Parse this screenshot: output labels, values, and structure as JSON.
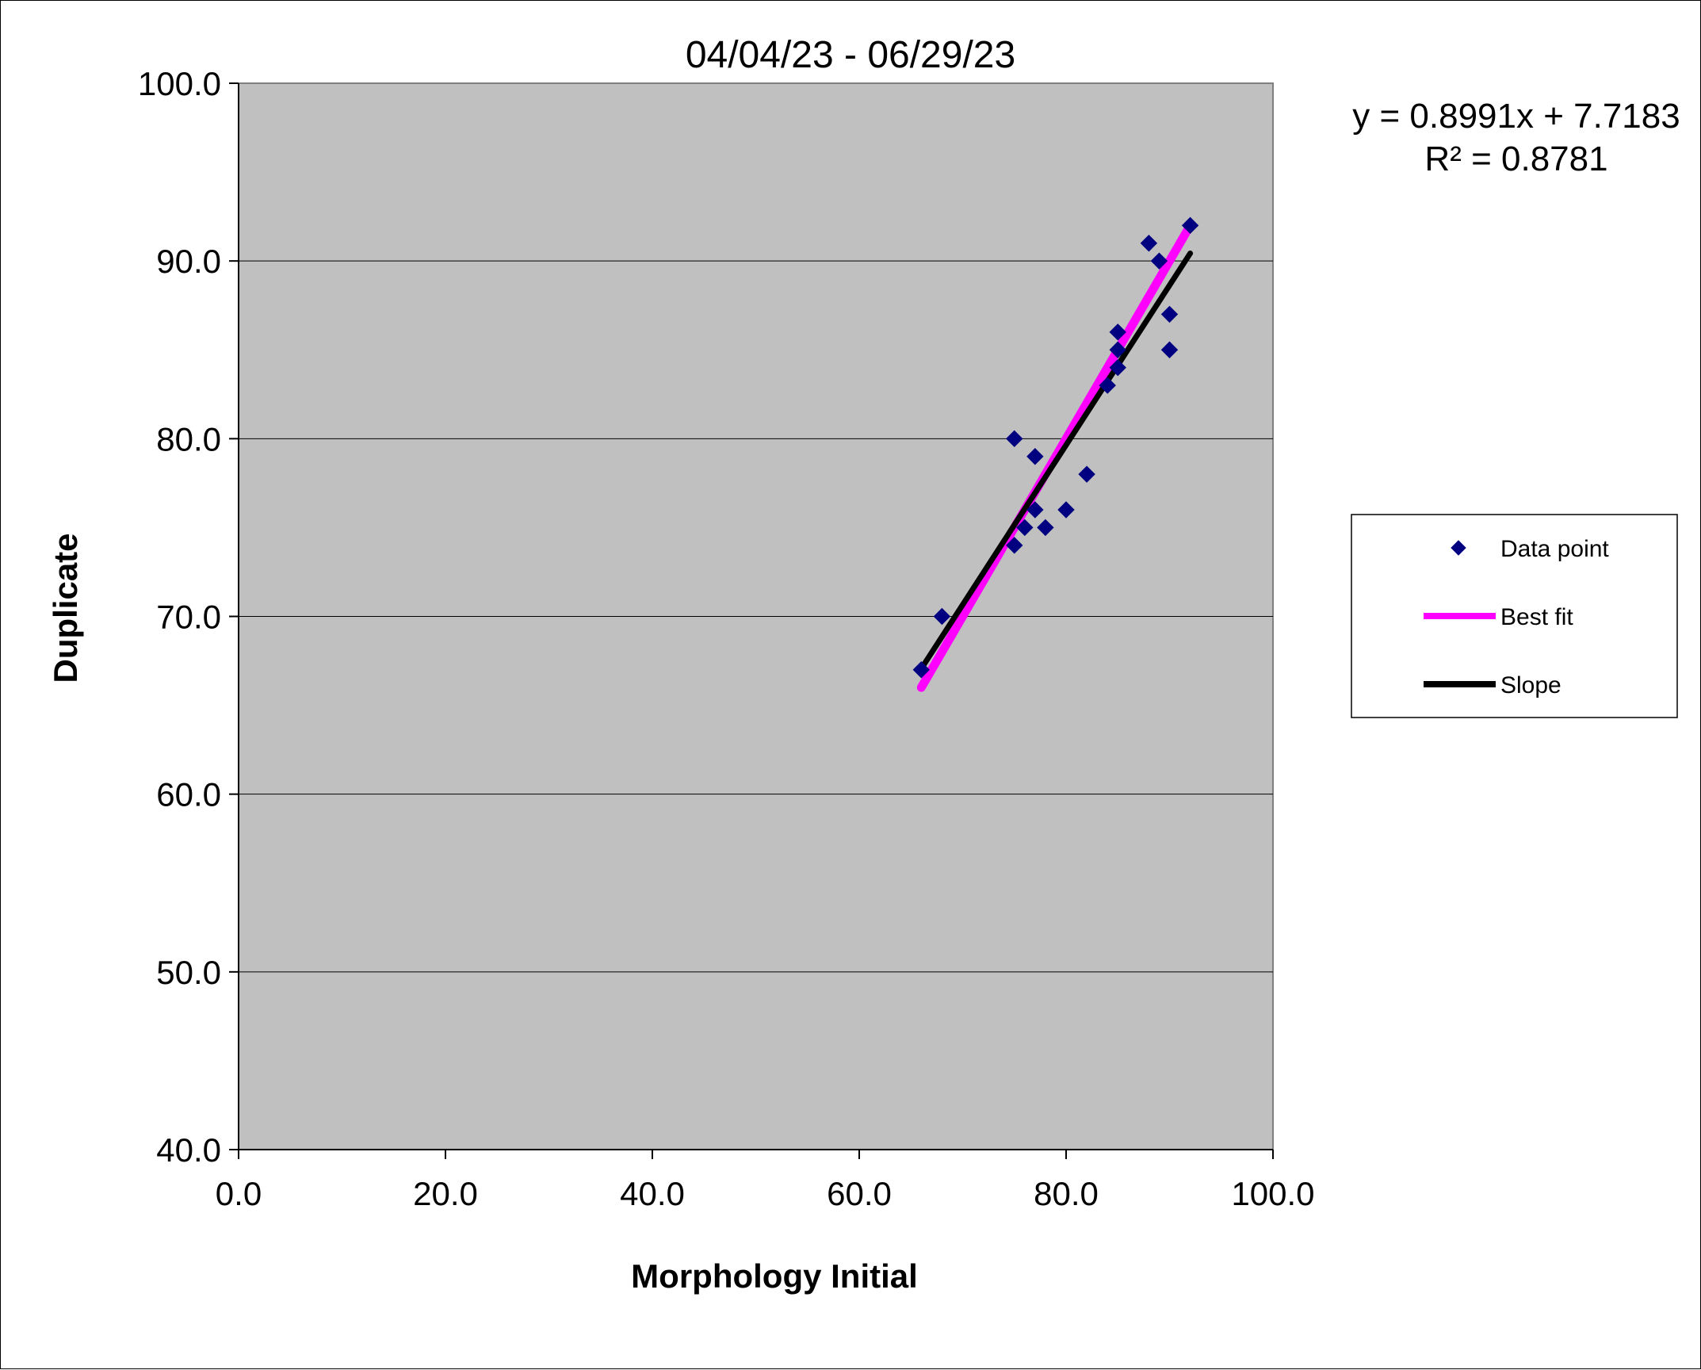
{
  "chart_data": {
    "type": "scatter",
    "title": "04/04/23 - 06/29/23",
    "xlabel": "Morphology Initial",
    "ylabel": "Duplicate",
    "xlim": [
      0,
      100
    ],
    "ylim": [
      40,
      100
    ],
    "x_ticks": [
      "0.0",
      "20.0",
      "40.0",
      "60.0",
      "80.0",
      "100.0"
    ],
    "y_ticks": [
      "100.0",
      "90.0",
      "80.0",
      "70.0",
      "60.0",
      "50.0",
      "40.0"
    ],
    "grid": "horizontal",
    "legend_position": "right",
    "annotation": {
      "equation": "y = 0.8991x + 7.7183",
      "r_squared": "R² = 0.8781"
    },
    "series": [
      {
        "name": "Data point",
        "kind": "scatter",
        "marker": "diamond",
        "color": "#000080",
        "x": [
          66,
          68,
          75,
          75,
          76,
          77,
          77,
          78,
          80,
          82,
          84,
          85,
          85,
          85,
          88,
          89,
          90,
          90,
          92
        ],
        "y": [
          67,
          70,
          80,
          74,
          75,
          79,
          76,
          75,
          76,
          78,
          83,
          85,
          86,
          84,
          91,
          90,
          87,
          85,
          92
        ]
      },
      {
        "name": "Best fit",
        "kind": "line",
        "color": "#ff00ff",
        "x": [
          66,
          92
        ],
        "y": [
          66,
          92
        ]
      },
      {
        "name": "Slope",
        "kind": "line",
        "color": "#000000",
        "x": [
          66,
          92
        ],
        "y": [
          67.06,
          90.43
        ]
      }
    ],
    "plot_background": "#c0c0c0"
  }
}
